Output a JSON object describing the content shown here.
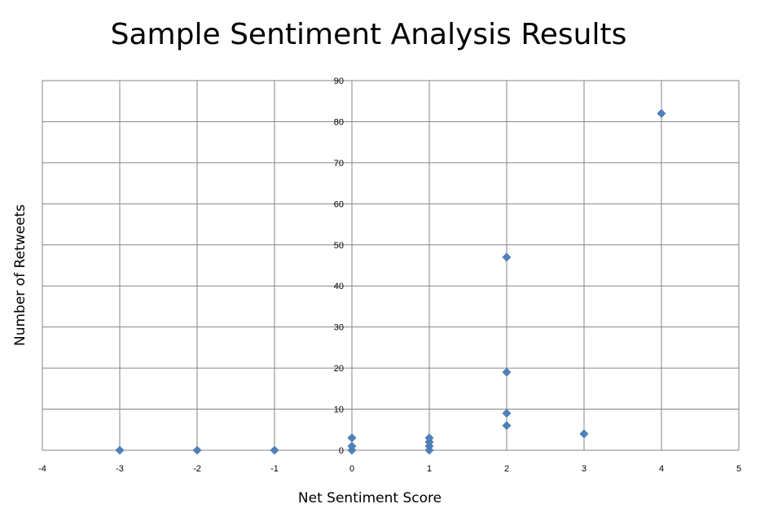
{
  "chart_data": {
    "type": "scatter",
    "title": "Sample Sentiment Analysis Results",
    "xlabel": "Net Sentiment Score",
    "ylabel": "Number of Retweets",
    "xlim": [
      -4,
      5
    ],
    "ylim": [
      0,
      90
    ],
    "x_ticks": [
      -4,
      -3,
      -2,
      -1,
      0,
      1,
      2,
      3,
      4,
      5
    ],
    "y_ticks": [
      0,
      10,
      20,
      30,
      40,
      50,
      60,
      70,
      80,
      90
    ],
    "grid": true,
    "legend": "none",
    "marker_color": "#4F81BD",
    "points": [
      {
        "x": -3,
        "y": 0
      },
      {
        "x": -2,
        "y": 0
      },
      {
        "x": -1,
        "y": 0
      },
      {
        "x": 0,
        "y": 0
      },
      {
        "x": 0,
        "y": 1
      },
      {
        "x": 0,
        "y": 3
      },
      {
        "x": 1,
        "y": 0
      },
      {
        "x": 1,
        "y": 1
      },
      {
        "x": 1,
        "y": 2
      },
      {
        "x": 1,
        "y": 3
      },
      {
        "x": 2,
        "y": 6
      },
      {
        "x": 2,
        "y": 9
      },
      {
        "x": 2,
        "y": 19
      },
      {
        "x": 2,
        "y": 47
      },
      {
        "x": 3,
        "y": 4
      },
      {
        "x": 4,
        "y": 82
      }
    ]
  }
}
